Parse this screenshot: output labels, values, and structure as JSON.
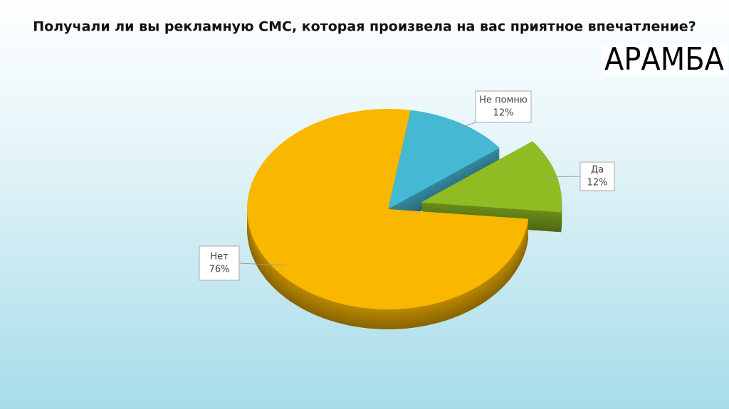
{
  "logo": "АРАМБА",
  "chart_data": {
    "type": "pie",
    "title": "Получали ли вы рекламную СМС, которая произвела на вас приятное впечатление?",
    "categories": [
      "Не помню",
      "Да",
      "Нет"
    ],
    "values": [
      12,
      12,
      76
    ],
    "value_labels": [
      "12%",
      "12%",
      "76%"
    ],
    "colors": [
      "#45b8d4",
      "#8fbc23",
      "#f9b700"
    ],
    "exploded": [
      false,
      true,
      false
    ]
  }
}
